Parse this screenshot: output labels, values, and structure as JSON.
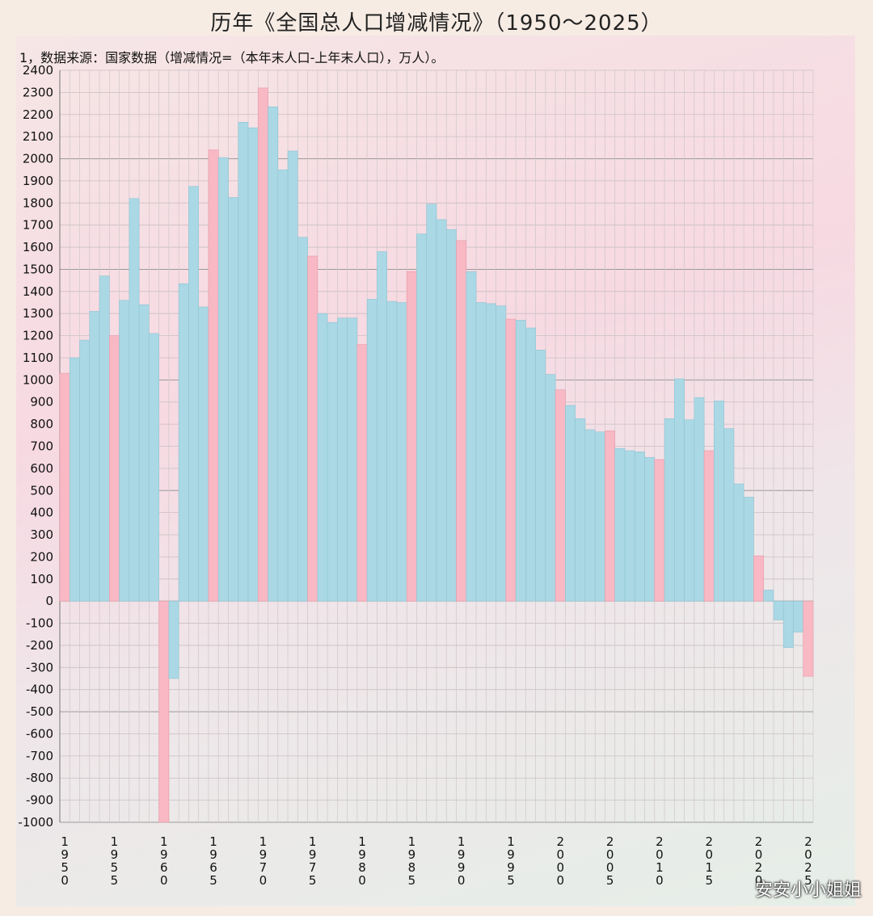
{
  "title": "历年《全国总人口增减情况》（1950～2025）",
  "note": "1，数据来源：国家数据（增减情况=（本年末人口-上年末人口），万人）。",
  "watermark_user": "安安小小姐姐",
  "colors": {
    "bar": "#aad8e4",
    "highlight": "#f8b8c4",
    "bar_stroke": "#8fc4d4",
    "highlight_stroke": "#e89aa8"
  },
  "chart_data": {
    "type": "bar",
    "title": "历年《全国总人口增减情况》（1950～2025）",
    "ylim": [
      -1000,
      2400
    ],
    "y_ticks": [
      2400,
      2300,
      2200,
      2100,
      2000,
      1900,
      1800,
      1700,
      1600,
      1500,
      1400,
      1300,
      1200,
      1100,
      1000,
      900,
      800,
      700,
      600,
      500,
      400,
      300,
      200,
      100,
      0,
      -100,
      -200,
      -300,
      -400,
      -500,
      -600,
      -700,
      -800,
      -900,
      -1000
    ],
    "x_tick_labels": [
      "1950",
      "1955",
      "1960",
      "1965",
      "1970",
      "1975",
      "1980",
      "1985",
      "1990",
      "1995",
      "2000",
      "2005",
      "2010",
      "2015",
      "2020",
      "2025"
    ],
    "grid": true,
    "highlight_every_5_years": true,
    "categories": [
      1950,
      1951,
      1952,
      1953,
      1954,
      1955,
      1956,
      1957,
      1958,
      1959,
      1960,
      1961,
      1962,
      1963,
      1964,
      1965,
      1966,
      1967,
      1968,
      1969,
      1970,
      1971,
      1972,
      1973,
      1974,
      1975,
      1976,
      1977,
      1978,
      1979,
      1980,
      1981,
      1982,
      1983,
      1984,
      1985,
      1986,
      1987,
      1988,
      1989,
      1990,
      1991,
      1992,
      1993,
      1994,
      1995,
      1996,
      1997,
      1998,
      1999,
      2000,
      2001,
      2002,
      2003,
      2004,
      2005,
      2006,
      2007,
      2008,
      2009,
      2010,
      2011,
      2012,
      2013,
      2014,
      2015,
      2016,
      2017,
      2018,
      2019,
      2020,
      2021,
      2022,
      2023,
      2024,
      2025
    ],
    "values": [
      1030,
      1100,
      1180,
      1310,
      1470,
      1200,
      1360,
      1820,
      1340,
      1210,
      -1000,
      -350,
      1435,
      1875,
      1330,
      2040,
      2005,
      1825,
      2165,
      2140,
      2320,
      2235,
      1950,
      2035,
      1645,
      1560,
      1300,
      1260,
      1280,
      1280,
      1160,
      1365,
      1580,
      1355,
      1350,
      1490,
      1660,
      1795,
      1725,
      1680,
      1630,
      1490,
      1350,
      1345,
      1335,
      1275,
      1270,
      1235,
      1135,
      1025,
      955,
      885,
      825,
      775,
      765,
      770,
      690,
      680,
      675,
      650,
      640,
      825,
      1005,
      820,
      920,
      680,
      905,
      780,
      530,
      470,
      205,
      50,
      -85,
      -210,
      -140,
      -340
    ]
  }
}
